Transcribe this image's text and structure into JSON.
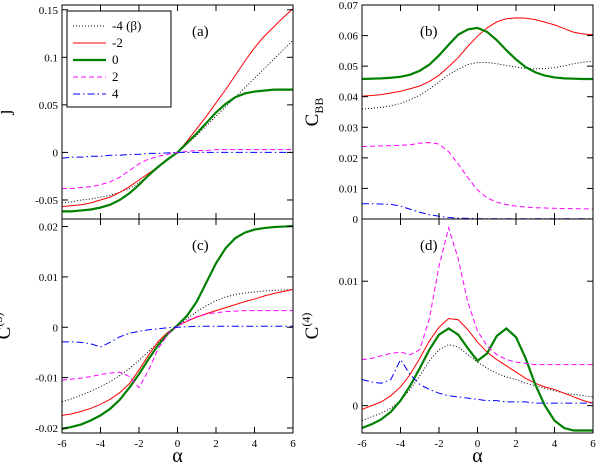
{
  "chart_data": [
    {
      "id": "a",
      "type": "line",
      "panel_label": "(a)",
      "ylabel": "j",
      "xlabel": "",
      "xlim": [
        -6,
        6
      ],
      "ylim": [
        -0.07,
        0.155
      ],
      "xticks": [
        -6,
        -4,
        -2,
        0,
        2,
        4,
        6
      ],
      "xtick_labels_shown": false,
      "yticks": [
        -0.05,
        0,
        0.05,
        0.1,
        0.15
      ],
      "ytick_labels": [
        "-0.05",
        "0",
        "0.05",
        "0.1",
        "0.15"
      ],
      "x": [
        -6,
        -5.5,
        -5,
        -4.5,
        -4,
        -3.5,
        -3,
        -2.5,
        -2,
        -1.5,
        -1,
        -0.5,
        0,
        0.5,
        1,
        1.5,
        2,
        2.5,
        3,
        3.5,
        4,
        4.5,
        5,
        5.5,
        6
      ],
      "series": [
        {
          "key": "m4",
          "values": [
            -0.053,
            -0.052,
            -0.05,
            -0.049,
            -0.047,
            -0.045,
            -0.042,
            -0.038,
            -0.032,
            -0.024,
            -0.016,
            -0.008,
            0,
            0.009,
            0.018,
            0.028,
            0.038,
            0.048,
            0.058,
            0.068,
            0.078,
            0.088,
            0.098,
            0.108,
            0.118
          ]
        },
        {
          "key": "m2",
          "values": [
            -0.057,
            -0.056,
            -0.055,
            -0.053,
            -0.05,
            -0.047,
            -0.042,
            -0.036,
            -0.029,
            -0.022,
            -0.015,
            -0.007,
            0,
            0.012,
            0.025,
            0.038,
            0.052,
            0.066,
            0.081,
            0.096,
            0.11,
            0.122,
            0.132,
            0.142,
            0.151
          ]
        },
        {
          "key": "z0",
          "values": [
            -0.062,
            -0.062,
            -0.061,
            -0.06,
            -0.058,
            -0.055,
            -0.05,
            -0.043,
            -0.034,
            -0.024,
            -0.015,
            -0.007,
            0,
            0.01,
            0.02,
            0.031,
            0.042,
            0.051,
            0.058,
            0.062,
            0.064,
            0.065,
            0.066,
            0.066,
            0.066
          ]
        },
        {
          "key": "p2",
          "values": [
            -0.038,
            -0.038,
            -0.037,
            -0.036,
            -0.034,
            -0.031,
            -0.026,
            -0.019,
            -0.012,
            -0.007,
            -0.004,
            -0.002,
            0,
            0.001,
            0.002,
            0.002,
            0.003,
            0.003,
            0.003,
            0.003,
            0.003,
            0.003,
            0.003,
            0.003,
            0.003
          ]
        },
        {
          "key": "p4",
          "values": [
            -0.006,
            -0.005,
            -0.005,
            -0.004,
            -0.004,
            -0.003,
            -0.003,
            -0.002,
            -0.002,
            -0.001,
            -0.001,
            -0.0005,
            0,
            0,
            0,
            0,
            0,
            0,
            0,
            0,
            0,
            0,
            0,
            0,
            0
          ]
        }
      ]
    },
    {
      "id": "b",
      "type": "line",
      "panel_label": "(b)",
      "ylabel": "C",
      "ylabel_sub": "BB",
      "xlabel": "",
      "xlim": [
        -6,
        6
      ],
      "ylim": [
        0,
        0.07
      ],
      "xticks": [
        -6,
        -4,
        -2,
        0,
        2,
        4,
        6
      ],
      "xtick_labels_shown": false,
      "yticks": [
        0,
        0.01,
        0.02,
        0.03,
        0.04,
        0.05,
        0.06,
        0.07
      ],
      "ytick_labels": [
        "0",
        "0.01",
        "0.02",
        "0.03",
        "0.04",
        "0.05",
        "0.06",
        "0.07"
      ],
      "x": [
        -6,
        -5.5,
        -5,
        -4.5,
        -4,
        -3.5,
        -3,
        -2.5,
        -2,
        -1.5,
        -1,
        -0.5,
        0,
        0.5,
        1,
        1.5,
        2,
        2.5,
        3,
        3.5,
        4,
        4.5,
        5,
        5.5,
        6
      ],
      "series": [
        {
          "key": "m4",
          "values": [
            0.036,
            0.0362,
            0.0365,
            0.037,
            0.0378,
            0.039,
            0.0405,
            0.0425,
            0.0448,
            0.0472,
            0.049,
            0.0505,
            0.0512,
            0.0512,
            0.0508,
            0.0502,
            0.0497,
            0.0493,
            0.0491,
            0.0492,
            0.0495,
            0.0501,
            0.0508,
            0.0513,
            0.0516
          ]
        },
        {
          "key": "m2",
          "values": [
            0.0402,
            0.0404,
            0.0407,
            0.0412,
            0.0418,
            0.0426,
            0.0435,
            0.045,
            0.047,
            0.0498,
            0.0528,
            0.0565,
            0.0598,
            0.0625,
            0.0645,
            0.0655,
            0.0658,
            0.0657,
            0.0652,
            0.0644,
            0.0635,
            0.0623,
            0.0611,
            0.0605,
            0.0603
          ]
        },
        {
          "key": "z0",
          "values": [
            0.0458,
            0.0459,
            0.046,
            0.0462,
            0.0465,
            0.0472,
            0.0485,
            0.0505,
            0.0535,
            0.057,
            0.0603,
            0.062,
            0.0625,
            0.0612,
            0.0585,
            0.0552,
            0.0522,
            0.0497,
            0.048,
            0.0469,
            0.0463,
            0.046,
            0.0459,
            0.0458,
            0.0458
          ]
        },
        {
          "key": "p2",
          "values": [
            0.0237,
            0.0238,
            0.0239,
            0.024,
            0.0241,
            0.0243,
            0.0248,
            0.025,
            0.0245,
            0.022,
            0.018,
            0.0135,
            0.0095,
            0.0069,
            0.0055,
            0.0047,
            0.0042,
            0.0039,
            0.0037,
            0.0036,
            0.0035,
            0.0034,
            0.0034,
            0.0033,
            0.0033
          ]
        },
        {
          "key": "p4",
          "values": [
            0.005,
            0.005,
            0.0049,
            0.0048,
            0.0042,
            0.0032,
            0.0022,
            0.0014,
            0.0009,
            0.0005,
            0.0003,
            0.0002,
            0.0001,
            0.0001,
            0.0001,
            0.0001,
            0.0001,
            0.0001,
            0.0001,
            0.0001,
            0.0001,
            0.0001,
            0.0001,
            0.0001,
            0.0001
          ]
        }
      ]
    },
    {
      "id": "c",
      "type": "line",
      "panel_label": "(c)",
      "ylabel": "C",
      "ylabel_sup": "(3)",
      "xlabel": "α",
      "xlim": [
        -6,
        6
      ],
      "ylim": [
        -0.021,
        0.0215
      ],
      "xticks": [
        -6,
        -4,
        -2,
        0,
        2,
        4,
        6
      ],
      "xtick_labels": [
        "-6",
        "-4",
        "-2",
        "0",
        "2",
        "4",
        "6"
      ],
      "xtick_labels_shown": true,
      "yticks": [
        -0.02,
        -0.01,
        0,
        0.01,
        0.02
      ],
      "ytick_labels": [
        "-0.02",
        "-0.01",
        "0",
        "0.01",
        "0.02"
      ],
      "x": [
        -6,
        -5.5,
        -5,
        -4.5,
        -4,
        -3.5,
        -3,
        -2.5,
        -2,
        -1.5,
        -1,
        -0.5,
        0,
        0.5,
        1,
        1.5,
        2,
        2.5,
        3,
        3.5,
        4,
        4.5,
        5,
        5.5,
        6
      ],
      "series": [
        {
          "key": "m4",
          "values": [
            -0.0148,
            -0.0142,
            -0.0135,
            -0.0127,
            -0.0118,
            -0.0108,
            -0.0096,
            -0.0082,
            -0.0066,
            -0.0048,
            -0.003,
            -0.0014,
            0.0002,
            0.0017,
            0.0031,
            0.0043,
            0.0053,
            0.006,
            0.0065,
            0.0068,
            0.007,
            0.0072,
            0.0073,
            0.0074,
            0.0075
          ]
        },
        {
          "key": "m2",
          "values": [
            -0.0175,
            -0.0172,
            -0.0167,
            -0.0161,
            -0.0153,
            -0.0143,
            -0.013,
            -0.0112,
            -0.0085,
            -0.0055,
            -0.0028,
            -0.001,
            0.0003,
            0.0012,
            0.002,
            0.0027,
            0.0033,
            0.0039,
            0.0045,
            0.0051,
            0.0056,
            0.0062,
            0.0067,
            0.0071,
            0.0075
          ]
        },
        {
          "key": "z0",
          "values": [
            -0.0202,
            -0.0198,
            -0.0193,
            -0.0185,
            -0.0175,
            -0.0162,
            -0.0144,
            -0.012,
            -0.0093,
            -0.0063,
            -0.0035,
            -0.0013,
            0.0004,
            0.0023,
            0.0051,
            0.0089,
            0.0127,
            0.0157,
            0.0177,
            0.0188,
            0.0194,
            0.0197,
            0.0199,
            0.02,
            0.0201
          ]
        },
        {
          "key": "p2",
          "values": [
            -0.0105,
            -0.0103,
            -0.0101,
            -0.0098,
            -0.0094,
            -0.0091,
            -0.0089,
            -0.0098,
            -0.012,
            -0.0085,
            -0.0042,
            -0.0014,
            0.0003,
            0.0013,
            0.0021,
            0.0026,
            0.0029,
            0.0031,
            0.0032,
            0.0033,
            0.0033,
            0.0033,
            0.0033,
            0.0033,
            0.0033
          ]
        },
        {
          "key": "p4",
          "values": [
            -0.0029,
            -0.0029,
            -0.003,
            -0.0033,
            -0.0039,
            -0.003,
            -0.0019,
            -0.0012,
            -0.0008,
            -0.0005,
            -0.0003,
            -0.0001,
            0,
            0.0001,
            0.0002,
            0.0002,
            0.0002,
            0.0002,
            0.0002,
            0.0002,
            0.0002,
            0.0002,
            0.0002,
            0.0002,
            0.0002
          ]
        }
      ]
    },
    {
      "id": "d",
      "type": "line",
      "panel_label": "(d)",
      "ylabel": "C",
      "ylabel_sup": "(4)",
      "xlabel": "α",
      "xlim": [
        -6,
        6
      ],
      "ylim": [
        -0.0022,
        0.015
      ],
      "xticks": [
        -6,
        -4,
        -2,
        0,
        2,
        4,
        6
      ],
      "xtick_labels": [
        "-6",
        "-4",
        "-2",
        "0",
        "2",
        "4",
        "6"
      ],
      "xtick_labels_shown": true,
      "yticks": [
        0,
        0.01
      ],
      "ytick_labels": [
        "0",
        "0.01"
      ],
      "x": [
        -6,
        -5.5,
        -5,
        -4.5,
        -4,
        -3.5,
        -3,
        -2.5,
        -2,
        -1.5,
        -1,
        -0.5,
        0,
        0.5,
        1,
        1.5,
        2,
        2.5,
        3,
        3.5,
        4,
        4.5,
        5,
        5.5,
        6
      ],
      "series": [
        {
          "key": "m4",
          "values": [
            -0.0012,
            -0.0009,
            -0.0006,
            -0.0002,
            0.0004,
            0.0013,
            0.0024,
            0.0036,
            0.0045,
            0.0049,
            0.0047,
            0.0041,
            0.0035,
            0.003,
            0.0026,
            0.0023,
            0.0021,
            0.0018,
            0.0016,
            0.0014,
            0.0012,
            0.001,
            0.0009,
            0.0008,
            0.0007
          ]
        },
        {
          "key": "m2",
          "values": [
            -0.0003,
            0,
            0.0003,
            0.0008,
            0.0015,
            0.0025,
            0.0038,
            0.0052,
            0.0063,
            0.007,
            0.0069,
            0.0061,
            0.0051,
            0.0043,
            0.0037,
            0.0032,
            0.0027,
            0.0022,
            0.0018,
            0.0015,
            0.0013,
            0.001,
            0.0007,
            0.0004,
            0.0002
          ]
        },
        {
          "key": "z0",
          "values": [
            -0.0018,
            -0.0015,
            -0.0011,
            -0.0005,
            0.0004,
            0.0016,
            0.003,
            0.0045,
            0.0057,
            0.0062,
            0.0057,
            0.0046,
            0.0036,
            0.0042,
            0.0056,
            0.0062,
            0.0055,
            0.0038,
            0.0017,
            0,
            -0.0012,
            -0.0018,
            -0.002,
            -0.002,
            -0.002
          ]
        },
        {
          "key": "p2",
          "values": [
            0.0037,
            0.0038,
            0.004,
            0.0042,
            0.0043,
            0.0041,
            0.0045,
            0.007,
            0.0112,
            0.0143,
            0.0118,
            0.0083,
            0.006,
            0.0048,
            0.0041,
            0.0037,
            0.0035,
            0.0034,
            0.0033,
            0.0033,
            0.0033,
            0.0033,
            0.0033,
            0.0033,
            0.0033
          ]
        },
        {
          "key": "p4",
          "values": [
            0.0021,
            0.0019,
            0.0018,
            0.0021,
            0.0037,
            0.0025,
            0.0017,
            0.0013,
            0.001,
            0.0008,
            0.0007,
            0.0006,
            0.0005,
            0.0004,
            0.0004,
            0.0003,
            0.0003,
            0.0003,
            0.0002,
            0.0002,
            0.0002,
            0.0002,
            0.0002,
            0.0002,
            0.0002
          ]
        }
      ]
    }
  ],
  "legend": {
    "placement": "top-left of panel (a)",
    "entries": [
      {
        "key": "m4",
        "label": "-4 (β)",
        "color": "#000000",
        "dash": "1,2",
        "width": 1
      },
      {
        "key": "m2",
        "label": "-2",
        "color": "#ff0000",
        "dash": "",
        "width": 1
      },
      {
        "key": "z0",
        "label": "0",
        "color": "#008000",
        "dash": "",
        "width": 2.2
      },
      {
        "key": "p2",
        "label": "2",
        "color": "#ff00ff",
        "dash": "5,3",
        "width": 1
      },
      {
        "key": "p4",
        "label": "4",
        "color": "#0000ff",
        "dash": "7,3,1.5,3",
        "width": 1
      }
    ]
  }
}
